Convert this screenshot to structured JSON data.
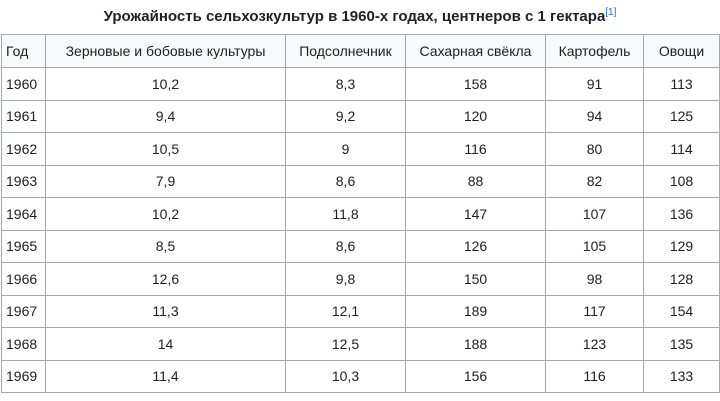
{
  "caption": {
    "title": "Урожайность сельхозкультур в 1960-х годах, центнеров с 1 гектара",
    "ref": "[1]"
  },
  "table": {
    "headers": [
      "Год",
      "Зерновые и бобовые культуры",
      "Подсолнечник",
      "Сахарная свёкла",
      "Картофель",
      "Овощи"
    ],
    "rows": [
      [
        "1960",
        "10,2",
        "8,3",
        "158",
        "91",
        "113"
      ],
      [
        "1961",
        "9,4",
        "9,2",
        "120",
        "94",
        "125"
      ],
      [
        "1962",
        "10,5",
        "9",
        "116",
        "80",
        "114"
      ],
      [
        "1963",
        "7,9",
        "8,6",
        "88",
        "82",
        "108"
      ],
      [
        "1964",
        "10,2",
        "11,8",
        "147",
        "107",
        "136"
      ],
      [
        "1965",
        "8,5",
        "8,6",
        "126",
        "105",
        "129"
      ],
      [
        "1966",
        "12,6",
        "9,8",
        "150",
        "98",
        "128"
      ],
      [
        "1967",
        "11,3",
        "12,1",
        "189",
        "117",
        "154"
      ],
      [
        "1968",
        "14",
        "12,5",
        "188",
        "123",
        "135"
      ],
      [
        "1969",
        "11,4",
        "10,3",
        "156",
        "116",
        "133"
      ]
    ]
  }
}
